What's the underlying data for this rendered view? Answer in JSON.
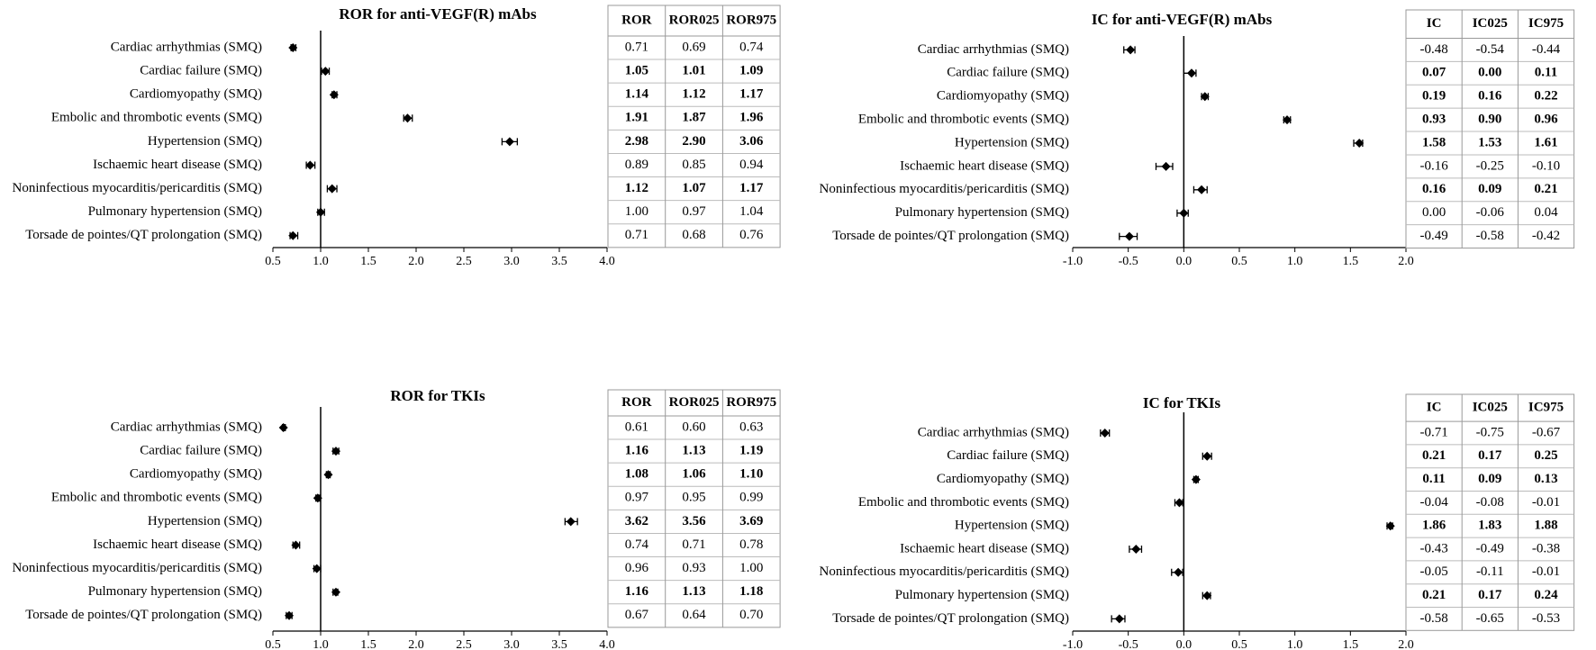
{
  "chart_data": [
    {
      "type": "forest",
      "title": "ROR for anti-VEGF(R) mAbs",
      "color": "#000000",
      "refline": 1,
      "categories": [
        "Cardiac arrhythmias (SMQ)",
        "Cardiac failure (SMQ)",
        "Cardiomyopathy (SMQ)",
        "Embolic and thrombotic events (SMQ)",
        "Hypertension (SMQ)",
        "Ischaemic heart disease (SMQ)",
        "Noninfectious myocarditis/pericarditis (SMQ)",
        "Pulmonary hypertension (SMQ)",
        "Torsade de pointes/QT prolongation (SMQ)"
      ],
      "series": [
        {
          "name": "ROR",
          "values": [
            0.71,
            1.05,
            1.14,
            1.91,
            2.98,
            0.89,
            1.12,
            1.0,
            0.71
          ],
          "value_labels": [
            "0.71",
            "1.05",
            "1.14",
            "1.91",
            "2.98",
            "0.89",
            "1.12",
            "1.00",
            "0.71"
          ]
        },
        {
          "name": "ROR025",
          "values": [
            0.69,
            1.01,
            1.12,
            1.87,
            2.9,
            0.85,
            1.07,
            0.97,
            0.68
          ],
          "value_labels": [
            "0.69",
            "1.01",
            "1.12",
            "1.87",
            "2.90",
            "0.85",
            "1.07",
            "0.97",
            "0.68"
          ]
        },
        {
          "name": "ROR975",
          "values": [
            0.74,
            1.09,
            1.17,
            1.96,
            3.06,
            0.94,
            1.17,
            1.04,
            0.76
          ],
          "value_labels": [
            "0.74",
            "1.09",
            "1.17",
            "1.96",
            "3.06",
            "0.94",
            "1.17",
            "1.04",
            "0.76"
          ]
        }
      ],
      "xlim": [
        0.5,
        4.0
      ],
      "xticks": [
        0.5,
        {
          "value": 1,
          "label": "1.0"
        },
        1.5,
        {
          "value": 2,
          "label": "2.0"
        },
        2.5,
        {
          "value": 3,
          "label": "3.0"
        },
        3.5,
        {
          "value": 4,
          "label": "4.0"
        }
      ]
    },
    {
      "type": "forest",
      "title": "IC for anti-VEGF(R) mAbs",
      "color": "#000000",
      "refline": 0,
      "categories": [
        "Cardiac arrhythmias (SMQ)",
        "Cardiac failure (SMQ)",
        "Cardiomyopathy (SMQ)",
        "Embolic and thrombotic events (SMQ)",
        "Hypertension (SMQ)",
        "Ischaemic heart disease (SMQ)",
        "Noninfectious myocarditis/pericarditis (SMQ)",
        "Pulmonary hypertension (SMQ)",
        "Torsade de pointes/QT prolongation (SMQ)"
      ],
      "series": [
        {
          "name": "IC",
          "values": [
            -0.48,
            0.07,
            0.19,
            0.93,
            1.58,
            -0.16,
            0.16,
            0.0,
            -0.49
          ],
          "value_labels": [
            "-0.48",
            "0.07",
            "0.19",
            "0.93",
            "1.58",
            "-0.16",
            "0.16",
            "0.00",
            "-0.49"
          ]
        },
        {
          "name": "IC025",
          "values": [
            -0.54,
            0.0,
            0.16,
            0.9,
            1.53,
            -0.25,
            0.09,
            -0.06,
            -0.58
          ],
          "value_labels": [
            "-0.54",
            "0.00",
            "0.16",
            "0.90",
            "1.53",
            "-0.25",
            "0.09",
            "-0.06",
            "-0.58"
          ]
        },
        {
          "name": "IC975",
          "values": [
            -0.44,
            0.11,
            0.22,
            0.96,
            1.61,
            -0.1,
            0.21,
            0.04,
            -0.42
          ],
          "value_labels": [
            "-0.44",
            "0.11",
            "0.22",
            "0.96",
            "1.61",
            "-0.10",
            "0.21",
            "0.04",
            "-0.42"
          ]
        }
      ],
      "xlim": [
        -1.0,
        2.0
      ],
      "xticks": [
        {
          "value": -1,
          "label": "-1.0"
        },
        -0.5,
        {
          "value": 0,
          "label": "0.0"
        },
        0.5,
        {
          "value": 1,
          "label": "1.0"
        },
        1.5,
        {
          "value": 2,
          "label": "2.0"
        }
      ]
    },
    {
      "type": "forest",
      "title": "ROR for TKIs",
      "color": "#000000",
      "refline": 1,
      "categories": [
        "Cardiac arrhythmias (SMQ)",
        "Cardiac failure (SMQ)",
        "Cardiomyopathy (SMQ)",
        "Embolic and thrombotic events (SMQ)",
        "Hypertension (SMQ)",
        "Ischaemic heart disease (SMQ)",
        "Noninfectious myocarditis/pericarditis (SMQ)",
        "Pulmonary hypertension (SMQ)",
        "Torsade de pointes/QT prolongation (SMQ)"
      ],
      "series": [
        {
          "name": "ROR",
          "values": [
            0.61,
            1.16,
            1.08,
            0.97,
            3.62,
            0.74,
            0.96,
            1.16,
            0.67
          ],
          "value_labels": [
            "0.61",
            "1.16",
            "1.08",
            "0.97",
            "3.62",
            "0.74",
            "0.96",
            "1.16",
            "0.67"
          ]
        },
        {
          "name": "ROR025",
          "values": [
            0.6,
            1.13,
            1.06,
            0.95,
            3.56,
            0.71,
            0.93,
            1.13,
            0.64
          ],
          "value_labels": [
            "0.60",
            "1.13",
            "1.06",
            "0.95",
            "3.56",
            "0.71",
            "0.93",
            "1.13",
            "0.64"
          ]
        },
        {
          "name": "ROR975",
          "values": [
            0.63,
            1.19,
            1.1,
            0.99,
            3.69,
            0.78,
            1.0,
            1.18,
            0.7
          ],
          "value_labels": [
            "0.63",
            "1.19",
            "1.10",
            "0.99",
            "3.69",
            "0.78",
            "1.00",
            "1.18",
            "0.70"
          ]
        }
      ],
      "xlim": [
        0.5,
        4.0
      ],
      "xticks": [
        0.5,
        {
          "value": 1,
          "label": "1.0"
        },
        1.5,
        {
          "value": 2,
          "label": "2.0"
        },
        2.5,
        {
          "value": 3,
          "label": "3.0"
        },
        3.5,
        {
          "value": 4,
          "label": "4.0"
        }
      ]
    },
    {
      "type": "forest",
      "title": "IC for TKIs",
      "color": "#000000",
      "refline": 0,
      "categories": [
        "Cardiac arrhythmias (SMQ)",
        "Cardiac failure (SMQ)",
        "Cardiomyopathy (SMQ)",
        "Embolic and thrombotic events (SMQ)",
        "Hypertension (SMQ)",
        "Ischaemic heart disease (SMQ)",
        "Noninfectious myocarditis/pericarditis (SMQ)",
        "Pulmonary hypertension (SMQ)",
        "Torsade de pointes/QT prolongation (SMQ)"
      ],
      "series": [
        {
          "name": "IC",
          "values": [
            -0.71,
            0.21,
            0.11,
            -0.04,
            1.86,
            -0.43,
            -0.05,
            0.21,
            -0.58
          ],
          "value_labels": [
            "-0.71",
            "0.21",
            "0.11",
            "-0.04",
            "1.86",
            "-0.43",
            "-0.05",
            "0.21",
            "-0.58"
          ]
        },
        {
          "name": "IC025",
          "values": [
            -0.75,
            0.17,
            0.09,
            -0.08,
            1.83,
            -0.49,
            -0.11,
            0.17,
            -0.65
          ],
          "value_labels": [
            "-0.75",
            "0.17",
            "0.09",
            "-0.08",
            "1.83",
            "-0.49",
            "-0.11",
            "0.17",
            "-0.65"
          ]
        },
        {
          "name": "IC975",
          "values": [
            -0.67,
            0.25,
            0.13,
            -0.01,
            1.88,
            -0.38,
            -0.01,
            0.24,
            -0.53
          ],
          "value_labels": [
            "-0.67",
            "0.25",
            "0.13",
            "-0.01",
            "1.88",
            "-0.38",
            "-0.01",
            "0.24",
            "-0.53"
          ]
        }
      ],
      "xlim": [
        -1.0,
        2.0
      ],
      "xticks": [
        {
          "value": -1,
          "label": "-1.0"
        },
        -0.5,
        {
          "value": 0,
          "label": "0.0"
        },
        0.5,
        {
          "value": 1,
          "label": "1.0"
        },
        1.5,
        {
          "value": 2,
          "label": "2.0"
        }
      ]
    }
  ]
}
